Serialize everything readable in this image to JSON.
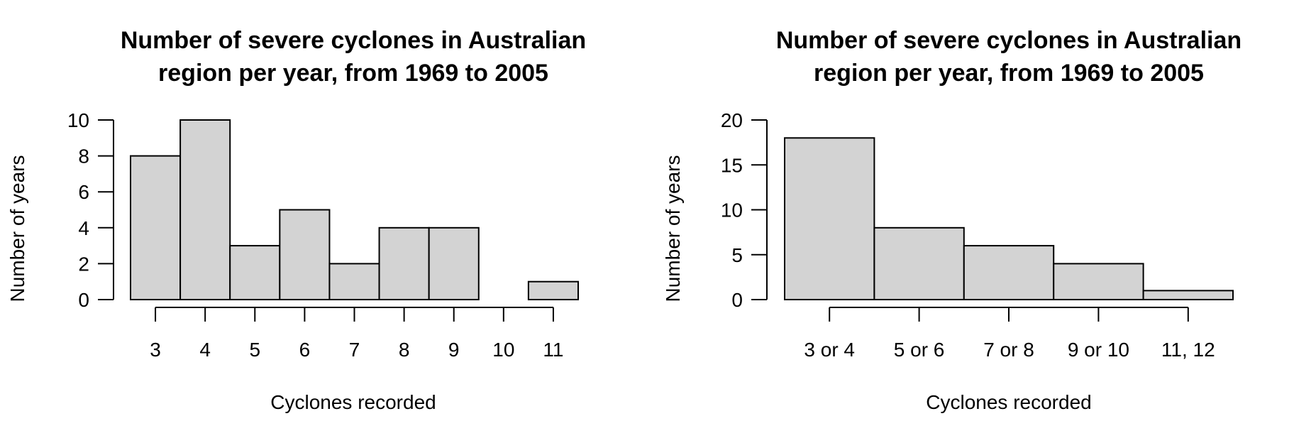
{
  "chart_data": [
    {
      "type": "bar",
      "title_lines": [
        "Number of severe cyclones in Australian",
        "region per year, from 1969 to 2005"
      ],
      "xlabel": "Cyclones recorded",
      "ylabel": "Number of years",
      "categories": [
        "3",
        "4",
        "5",
        "6",
        "7",
        "8",
        "9",
        "10",
        "11"
      ],
      "values": [
        8,
        10,
        3,
        5,
        2,
        4,
        4,
        0,
        1
      ],
      "ylim": [
        0,
        10
      ],
      "yticks": [
        0,
        2,
        4,
        6,
        8,
        10
      ],
      "bar_color": "#d3d3d3",
      "grid": false
    },
    {
      "type": "bar",
      "title_lines": [
        "Number of severe cyclones in Australian",
        "region per year, from 1969 to 2005"
      ],
      "xlabel": "Cyclones recorded",
      "ylabel": "Number of years",
      "categories": [
        "3 or 4",
        "5 or 6",
        "7 or 8",
        "9 or 10",
        "11, 12"
      ],
      "values": [
        18,
        8,
        6,
        4,
        1
      ],
      "ylim": [
        0,
        20
      ],
      "yticks": [
        0,
        5,
        10,
        15,
        20
      ],
      "bar_color": "#d3d3d3",
      "grid": false
    }
  ]
}
